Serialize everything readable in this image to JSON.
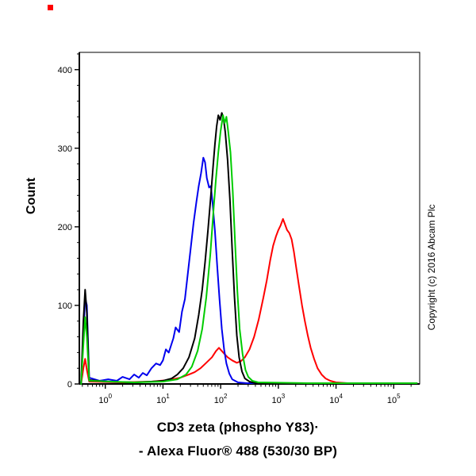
{
  "figure": {
    "ylabel": "Count",
    "xlabel_line1": "CD3 zeta (phospho Y83)·",
    "xlabel_line2": "- Alexa Fluor® 488 (530/30 BP)",
    "copyright": "Copyright (c) 2016 Abcam Plc",
    "stray_mark_color": "#ff0000",
    "background": "#ffffff",
    "axis_color": "#000000"
  },
  "chart_data": {
    "type": "line",
    "title": "",
    "xlabel": "CD3 zeta (phospho Y83) - Alexa Fluor® 488 (530/30 BP)",
    "ylabel": "Count",
    "x_scale": "log10",
    "x_tick_base": "10",
    "x_ticks_exponents": [
      0,
      1,
      2,
      3,
      4,
      5
    ],
    "xlim_log": [
      -0.45,
      5.45
    ],
    "ylim": [
      0,
      422
    ],
    "y_ticks": [
      0,
      100,
      200,
      300,
      400
    ],
    "y_minor_step": 20,
    "grid": false,
    "legend": "none",
    "series": [
      {
        "name": "red",
        "color": "#ff0000",
        "points": [
          [
            -0.42,
            0
          ],
          [
            -0.38,
            20
          ],
          [
            -0.35,
            32
          ],
          [
            -0.32,
            18
          ],
          [
            -0.28,
            3
          ],
          [
            0.3,
            2
          ],
          [
            0.8,
            3
          ],
          [
            1.1,
            5
          ],
          [
            1.3,
            8
          ],
          [
            1.45,
            12
          ],
          [
            1.55,
            15
          ],
          [
            1.65,
            20
          ],
          [
            1.75,
            27
          ],
          [
            1.85,
            34
          ],
          [
            1.92,
            42
          ],
          [
            1.97,
            46
          ],
          [
            2.02,
            42
          ],
          [
            2.07,
            38
          ],
          [
            2.12,
            34
          ],
          [
            2.2,
            30
          ],
          [
            2.28,
            27
          ],
          [
            2.35,
            29
          ],
          [
            2.42,
            34
          ],
          [
            2.5,
            44
          ],
          [
            2.58,
            60
          ],
          [
            2.66,
            82
          ],
          [
            2.74,
            110
          ],
          [
            2.8,
            132
          ],
          [
            2.86,
            158
          ],
          [
            2.91,
            176
          ],
          [
            2.96,
            188
          ],
          [
            3.0,
            196
          ],
          [
            3.04,
            202
          ],
          [
            3.08,
            210
          ],
          [
            3.11,
            204
          ],
          [
            3.15,
            196
          ],
          [
            3.19,
            192
          ],
          [
            3.23,
            184
          ],
          [
            3.27,
            168
          ],
          [
            3.31,
            148
          ],
          [
            3.36,
            124
          ],
          [
            3.41,
            100
          ],
          [
            3.46,
            80
          ],
          [
            3.51,
            62
          ],
          [
            3.56,
            46
          ],
          [
            3.62,
            32
          ],
          [
            3.68,
            20
          ],
          [
            3.75,
            12
          ],
          [
            3.82,
            7
          ],
          [
            3.9,
            4
          ],
          [
            4.0,
            2
          ],
          [
            4.2,
            1
          ],
          [
            5.4,
            1
          ]
        ]
      },
      {
        "name": "blue",
        "color": "#0000ee",
        "points": [
          [
            -0.42,
            0
          ],
          [
            -0.38,
            60
          ],
          [
            -0.35,
            110
          ],
          [
            -0.32,
            100
          ],
          [
            -0.28,
            8
          ],
          [
            -0.1,
            4
          ],
          [
            0.05,
            6
          ],
          [
            0.2,
            4
          ],
          [
            0.3,
            9
          ],
          [
            0.42,
            6
          ],
          [
            0.5,
            12
          ],
          [
            0.58,
            8
          ],
          [
            0.65,
            14
          ],
          [
            0.72,
            11
          ],
          [
            0.8,
            20
          ],
          [
            0.88,
            26
          ],
          [
            0.95,
            24
          ],
          [
            1.0,
            30
          ],
          [
            1.05,
            44
          ],
          [
            1.1,
            40
          ],
          [
            1.18,
            58
          ],
          [
            1.22,
            72
          ],
          [
            1.28,
            66
          ],
          [
            1.33,
            92
          ],
          [
            1.38,
            108
          ],
          [
            1.43,
            140
          ],
          [
            1.48,
            172
          ],
          [
            1.53,
            205
          ],
          [
            1.58,
            232
          ],
          [
            1.62,
            252
          ],
          [
            1.66,
            268
          ],
          [
            1.7,
            288
          ],
          [
            1.73,
            282
          ],
          [
            1.76,
            262
          ],
          [
            1.8,
            250
          ],
          [
            1.83,
            252
          ],
          [
            1.86,
            230
          ],
          [
            1.9,
            195
          ],
          [
            1.94,
            150
          ],
          [
            1.98,
            108
          ],
          [
            2.02,
            70
          ],
          [
            2.06,
            44
          ],
          [
            2.1,
            26
          ],
          [
            2.15,
            13
          ],
          [
            2.2,
            6
          ],
          [
            2.3,
            2
          ],
          [
            2.45,
            1
          ],
          [
            3.0,
            1
          ],
          [
            4.0,
            1
          ],
          [
            5.4,
            1
          ]
        ]
      },
      {
        "name": "black",
        "color": "#000000",
        "points": [
          [
            -0.42,
            0
          ],
          [
            -0.38,
            80
          ],
          [
            -0.35,
            120
          ],
          [
            -0.32,
            90
          ],
          [
            -0.28,
            5
          ],
          [
            0.0,
            3
          ],
          [
            0.5,
            2
          ],
          [
            0.8,
            3
          ],
          [
            1.0,
            4
          ],
          [
            1.15,
            7
          ],
          [
            1.25,
            12
          ],
          [
            1.35,
            20
          ],
          [
            1.45,
            34
          ],
          [
            1.55,
            58
          ],
          [
            1.62,
            88
          ],
          [
            1.68,
            120
          ],
          [
            1.73,
            155
          ],
          [
            1.78,
            195
          ],
          [
            1.83,
            240
          ],
          [
            1.87,
            278
          ],
          [
            1.9,
            305
          ],
          [
            1.93,
            328
          ],
          [
            1.96,
            342
          ],
          [
            1.99,
            336
          ],
          [
            2.02,
            345
          ],
          [
            2.05,
            338
          ],
          [
            2.08,
            320
          ],
          [
            2.12,
            285
          ],
          [
            2.16,
            235
          ],
          [
            2.2,
            170
          ],
          [
            2.24,
            110
          ],
          [
            2.28,
            62
          ],
          [
            2.32,
            34
          ],
          [
            2.37,
            16
          ],
          [
            2.42,
            7
          ],
          [
            2.5,
            3
          ],
          [
            2.6,
            1
          ],
          [
            3.5,
            1
          ],
          [
            5.4,
            1
          ]
        ]
      },
      {
        "name": "green",
        "color": "#00cc00",
        "points": [
          [
            -0.42,
            0
          ],
          [
            -0.38,
            50
          ],
          [
            -0.35,
            85
          ],
          [
            -0.32,
            60
          ],
          [
            -0.28,
            4
          ],
          [
            0.5,
            2
          ],
          [
            1.0,
            3
          ],
          [
            1.25,
            6
          ],
          [
            1.4,
            12
          ],
          [
            1.5,
            22
          ],
          [
            1.6,
            42
          ],
          [
            1.68,
            70
          ],
          [
            1.75,
            110
          ],
          [
            1.82,
            165
          ],
          [
            1.88,
            225
          ],
          [
            1.92,
            262
          ],
          [
            1.96,
            295
          ],
          [
            2.0,
            322
          ],
          [
            2.04,
            342
          ],
          [
            2.07,
            332
          ],
          [
            2.1,
            340
          ],
          [
            2.13,
            322
          ],
          [
            2.17,
            295
          ],
          [
            2.21,
            245
          ],
          [
            2.25,
            180
          ],
          [
            2.29,
            118
          ],
          [
            2.33,
            70
          ],
          [
            2.38,
            38
          ],
          [
            2.43,
            18
          ],
          [
            2.48,
            9
          ],
          [
            2.55,
            4
          ],
          [
            2.65,
            2
          ],
          [
            3.5,
            1
          ],
          [
            5.4,
            1
          ]
        ]
      }
    ]
  }
}
